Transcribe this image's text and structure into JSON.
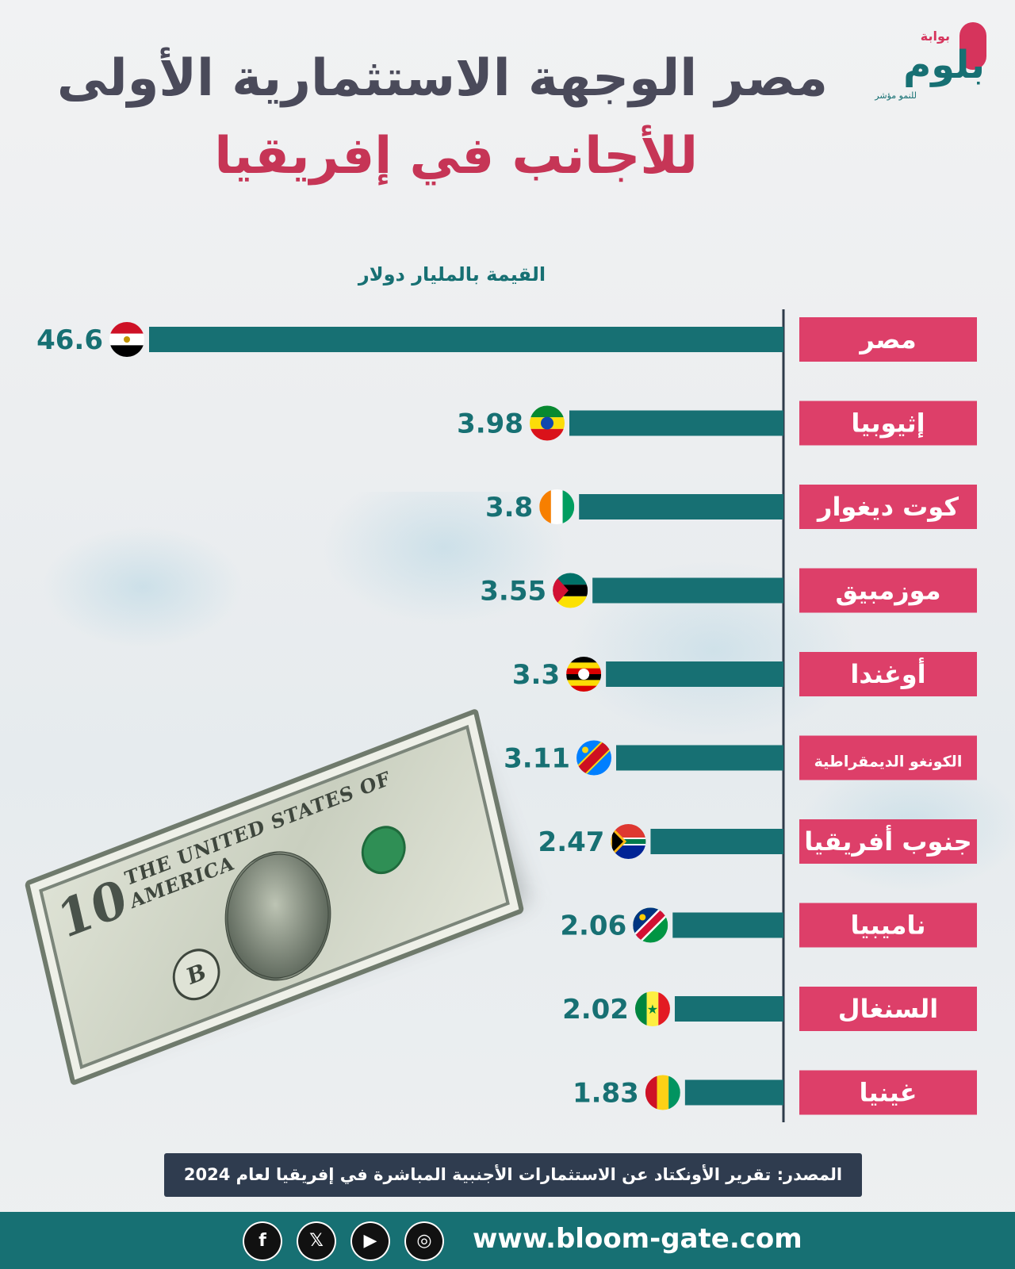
{
  "logo": {
    "small": "بوابة",
    "word": "بلوم",
    "tagline": "للنمو مؤشر"
  },
  "title": {
    "line1": "مصر الوجهة الاستثمارية الأولى",
    "line2": "للأجانب في إفريقيا"
  },
  "colors": {
    "bar": "#177073",
    "label_bg": "#dd3f69",
    "label_text": "#ffffff",
    "value_text": "#177073",
    "axis": "#2e3b4a"
  },
  "chart_data": {
    "type": "bar",
    "orientation": "horizontal",
    "unit_label": "القيمة بالمليار دولار",
    "categories": [
      "مصر",
      "إثيوبيا",
      "كوت ديغوار",
      "موزمبيق",
      "أوغندا",
      "الكونغو الديمقراطية",
      "جنوب أفريقيا",
      "ناميبيا",
      "السنغال",
      "غينيا"
    ],
    "values": [
      46.6,
      3.98,
      3.8,
      3.55,
      3.3,
      3.11,
      2.47,
      2.06,
      2.02,
      1.83
    ],
    "value_labels": [
      "46.6",
      "3.98",
      "3.8",
      "3.55",
      "3.3",
      "3.11",
      "2.47",
      "2.06",
      "2.02",
      "1.83"
    ],
    "flags": [
      "egypt-flag-icon",
      "ethiopia-flag-icon",
      "ivory-coast-flag-icon",
      "mozambique-flag-icon",
      "uganda-flag-icon",
      "dr-congo-flag-icon",
      "south-africa-flag-icon",
      "namibia-flag-icon",
      "senegal-flag-icon",
      "guinea-flag-icon"
    ],
    "xlim": [
      0,
      46.6
    ],
    "bar_scale": "broken",
    "grid": false,
    "legend": "none"
  },
  "bill": {
    "text": "THE UNITED STATES OF AMERICA",
    "letter": "B",
    "denomination": "10"
  },
  "source": "المصدر: تقرير الأونكتاد عن الاستثمارات الأجنبية المباشرة في إفريقيا لعام 2024",
  "footer": {
    "website": "www.bloom-gate.com",
    "social": [
      "facebook-icon",
      "x-icon",
      "youtube-icon",
      "instagram-icon"
    ]
  }
}
